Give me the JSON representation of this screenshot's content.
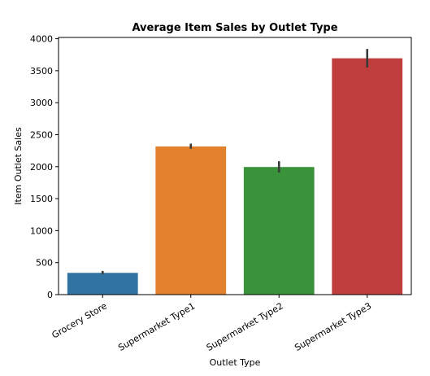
{
  "chart_data": {
    "type": "bar",
    "title": "Average Item Sales by Outlet Type",
    "xlabel": "Outlet Type",
    "ylabel": "Item Outlet Sales",
    "categories": [
      "Grocery Store",
      "Supermarket Type1",
      "Supermarket Type2",
      "Supermarket Type3"
    ],
    "values": [
      340,
      2316,
      1995,
      3694
    ],
    "error_bars": [
      [
        320,
        370
      ],
      [
        2280,
        2360
      ],
      [
        1910,
        2085
      ],
      [
        3550,
        3840
      ]
    ],
    "colors": [
      "#3274a1",
      "#e1812c",
      "#3a923a",
      "#c03d3e"
    ],
    "ylim": [
      0,
      4020
    ],
    "yticks": [
      0,
      500,
      1000,
      1500,
      2000,
      2500,
      3000,
      3500,
      4000
    ],
    "grid": false,
    "legend": "none"
  }
}
